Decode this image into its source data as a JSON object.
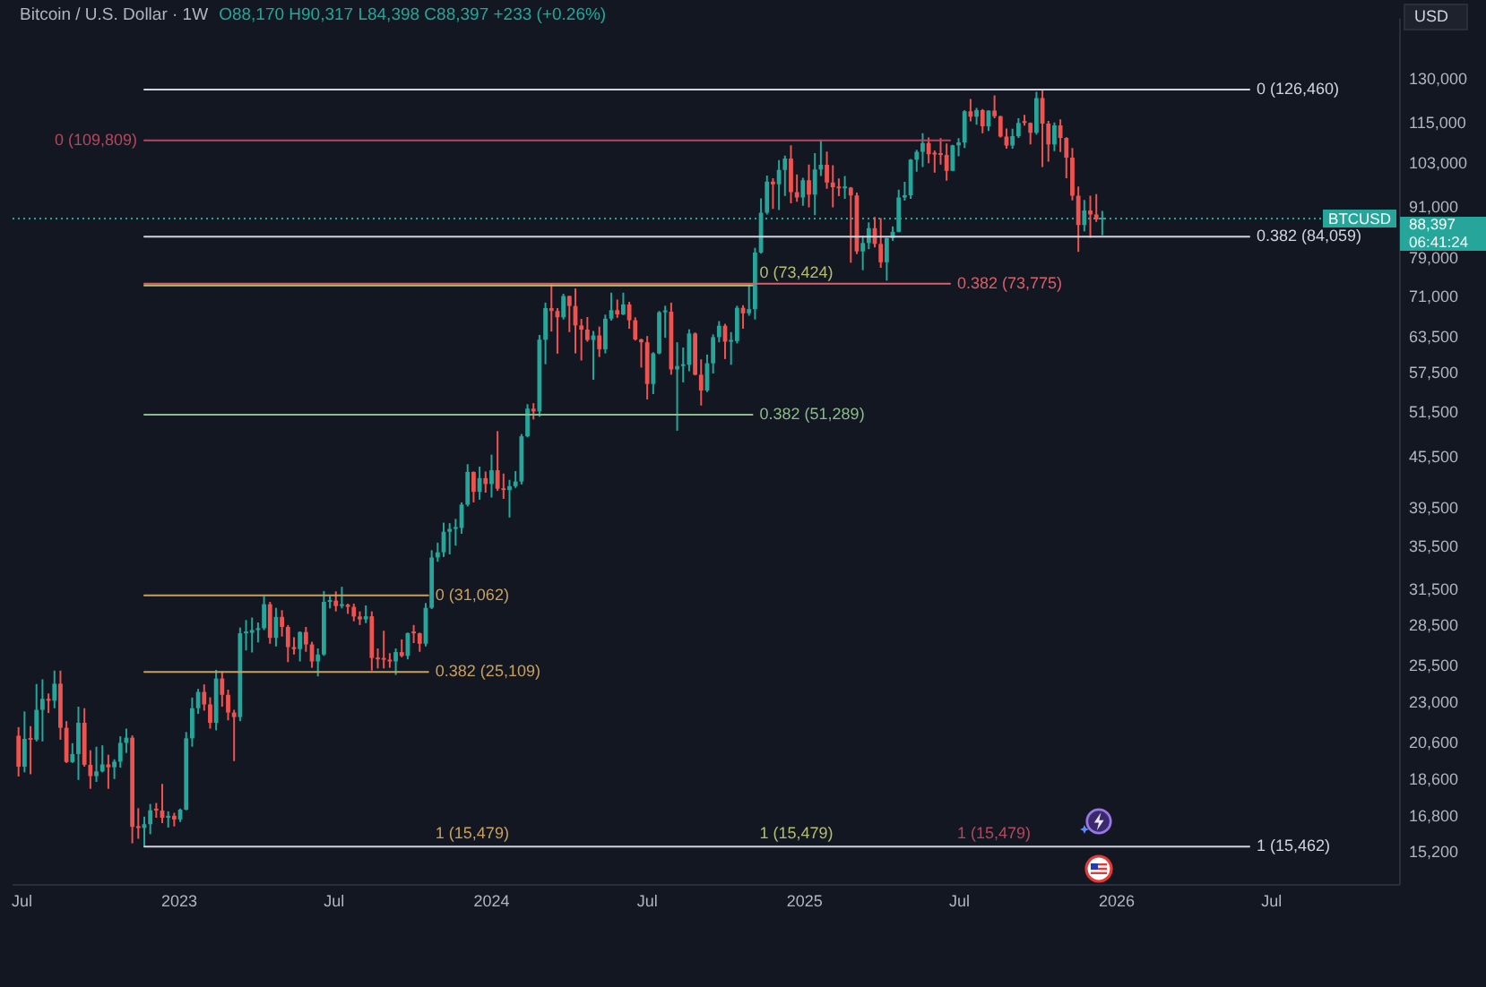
{
  "chart_data": {
    "type": "candlestick",
    "title": "Bitcoin / U.S. Dollar · 1W",
    "subtitle": "O88,170 H90,317 L84,398 C88,397 +233 (+0.26%)",
    "ylabel": "USD",
    "log": true,
    "xlim": [
      "2022-06-20",
      "2026-11-28"
    ],
    "xticks": [
      {
        "value": "2022-07-01",
        "label": "Jul"
      },
      {
        "value": "2023-01-01",
        "label": "2023"
      },
      {
        "value": "2023-07-01",
        "label": "Jul"
      },
      {
        "value": "2024-01-01",
        "label": "2024"
      },
      {
        "value": "2024-07-01",
        "label": "Jul"
      },
      {
        "value": "2025-01-01",
        "label": "2025"
      },
      {
        "value": "2025-07-01",
        "label": "Jul"
      },
      {
        "value": "2026-01-01",
        "label": "2026"
      },
      {
        "value": "2026-07-01",
        "label": "Jul"
      }
    ],
    "ylim": [
      13900,
      154000
    ],
    "yticks": [
      {
        "value": 15200,
        "label": "15,200"
      },
      {
        "value": 16800,
        "label": "16,800"
      },
      {
        "value": 18600,
        "label": "18,600"
      },
      {
        "value": 20600,
        "label": "20,600"
      },
      {
        "value": 23000,
        "label": "23,000"
      },
      {
        "value": 25500,
        "label": "25,500"
      },
      {
        "value": 28500,
        "label": "28,500"
      },
      {
        "value": 31500,
        "label": "31,500"
      },
      {
        "value": 35500,
        "label": "35,500"
      },
      {
        "value": 39500,
        "label": "39,500"
      },
      {
        "value": 45500,
        "label": "45,500"
      },
      {
        "value": 51500,
        "label": "51,500"
      },
      {
        "value": 57500,
        "label": "57,500"
      },
      {
        "value": 63500,
        "label": "63,500"
      },
      {
        "value": 71000,
        "label": "71,000"
      },
      {
        "value": 79000,
        "label": "79,000"
      },
      {
        "value": 91000,
        "label": "91,000"
      },
      {
        "value": 103000,
        "label": "103,000"
      },
      {
        "value": 115000,
        "label": "115,000"
      },
      {
        "value": 130000,
        "label": "130,000"
      }
    ],
    "ref_lines": [
      {
        "axis": "y",
        "value": 88397,
        "label": "88,397",
        "color": "#26a69a",
        "line_style": "dotted"
      }
    ],
    "annotations": [
      "BTCUSD",
      "06:41:24",
      {
        "text": "1 (15,479)",
        "x": "2025-06-20",
        "y": 15479
      },
      {
        "text": "1 (15,479)",
        "x": "2024-11-01",
        "y": 15479
      },
      {
        "text": "1 (15,479)",
        "x": "2023-10-19",
        "y": 15479
      }
    ],
    "series": [
      {
        "x": [
          "2022-06-27",
          "2022-07-04",
          "2022-07-11",
          "2022-07-18",
          "2022-07-25",
          "2022-08-01",
          "2022-08-08",
          "2022-08-15",
          "2022-08-22",
          "2022-08-29",
          "2022-09-05",
          "2022-09-12",
          "2022-09-19",
          "2022-09-26",
          "2022-10-03",
          "2022-10-10",
          "2022-10-17",
          "2022-10-24",
          "2022-10-31",
          "2022-11-07",
          "2022-11-14",
          "2022-11-21",
          "2022-11-28",
          "2022-12-05",
          "2022-12-12",
          "2022-12-19",
          "2022-12-26",
          "2023-01-02",
          "2023-01-09",
          "2023-01-16",
          "2023-01-23",
          "2023-01-30",
          "2023-02-06",
          "2023-02-13",
          "2023-02-20",
          "2023-02-27",
          "2023-03-06",
          "2023-03-13",
          "2023-03-20",
          "2023-03-27",
          "2023-04-03",
          "2023-04-10",
          "2023-04-17",
          "2023-04-24",
          "2023-05-01",
          "2023-05-08",
          "2023-05-15",
          "2023-05-22",
          "2023-05-29",
          "2023-06-05",
          "2023-06-12",
          "2023-06-19",
          "2023-06-26",
          "2023-07-03",
          "2023-07-10",
          "2023-07-17",
          "2023-07-24",
          "2023-07-31",
          "2023-08-07",
          "2023-08-14",
          "2023-08-21",
          "2023-08-28",
          "2023-09-04",
          "2023-09-11",
          "2023-09-18",
          "2023-09-25",
          "2023-10-02",
          "2023-10-09",
          "2023-10-16",
          "2023-10-23",
          "2023-10-30",
          "2023-11-06",
          "2023-11-13",
          "2023-11-20",
          "2023-11-27",
          "2023-12-04",
          "2023-12-11",
          "2023-12-18",
          "2023-12-25",
          "2024-01-01",
          "2024-01-08",
          "2024-01-15",
          "2024-01-22",
          "2024-01-29",
          "2024-02-05",
          "2024-02-12",
          "2024-02-19",
          "2024-02-26",
          "2024-03-04",
          "2024-03-11",
          "2024-03-18",
          "2024-03-25",
          "2024-04-01",
          "2024-04-08",
          "2024-04-15",
          "2024-04-22",
          "2024-04-29",
          "2024-05-06",
          "2024-05-13",
          "2024-05-20",
          "2024-05-27",
          "2024-06-03",
          "2024-06-10",
          "2024-06-17",
          "2024-06-24",
          "2024-07-01",
          "2024-07-08",
          "2024-07-15",
          "2024-07-22",
          "2024-07-29",
          "2024-08-05",
          "2024-08-12",
          "2024-08-19",
          "2024-08-26",
          "2024-09-02",
          "2024-09-09",
          "2024-09-16",
          "2024-09-23",
          "2024-09-30",
          "2024-10-07",
          "2024-10-14",
          "2024-10-21",
          "2024-10-28",
          "2024-11-04",
          "2024-11-11",
          "2024-11-18",
          "2024-11-25",
          "2024-12-02",
          "2024-12-09",
          "2024-12-16",
          "2024-12-23",
          "2024-12-30",
          "2025-01-06",
          "2025-01-13",
          "2025-01-20",
          "2025-01-27",
          "2025-02-03",
          "2025-02-10",
          "2025-02-17",
          "2025-02-24",
          "2025-03-03",
          "2025-03-10",
          "2025-03-17",
          "2025-03-24",
          "2025-03-31",
          "2025-04-07",
          "2025-04-14",
          "2025-04-21",
          "2025-04-28",
          "2025-05-05",
          "2025-05-12",
          "2025-05-19",
          "2025-05-26",
          "2025-06-02",
          "2025-06-09",
          "2025-06-16",
          "2025-06-23",
          "2025-06-30",
          "2025-07-07",
          "2025-07-14",
          "2025-07-21",
          "2025-07-28",
          "2025-08-04",
          "2025-08-11",
          "2025-08-18",
          "2025-08-25",
          "2025-09-01",
          "2025-09-08",
          "2025-09-15",
          "2025-09-22",
          "2025-09-29",
          "2025-10-06",
          "2025-10-13",
          "2025-10-20",
          "2025-10-27",
          "2025-11-03",
          "2025-11-10",
          "2025-11-17",
          "2025-11-24",
          "2025-12-01",
          "2025-12-08",
          "2025-12-15"
        ],
        "ohlc": [
          [
            21030,
            21540,
            18780,
            19300
          ],
          [
            19300,
            22500,
            19000,
            20850
          ],
          [
            20850,
            21600,
            18900,
            20800
          ],
          [
            20800,
            24280,
            20700,
            22600
          ],
          [
            22600,
            24600,
            20700,
            23300
          ],
          [
            23300,
            23650,
            22400,
            23180
          ],
          [
            23180,
            25200,
            22700,
            24300
          ],
          [
            24300,
            25200,
            20800,
            21500
          ],
          [
            21500,
            21900,
            19500,
            19550
          ],
          [
            19550,
            20600,
            19500,
            19990
          ],
          [
            19990,
            22800,
            18600,
            21800
          ],
          [
            21800,
            22700,
            19300,
            19400
          ],
          [
            19400,
            20200,
            18150,
            18800
          ],
          [
            18800,
            20400,
            18500,
            19050
          ],
          [
            19050,
            20480,
            19000,
            19420
          ],
          [
            19420,
            19950,
            18150,
            19270
          ],
          [
            19270,
            19700,
            18650,
            19570
          ],
          [
            19570,
            21000,
            19250,
            20620
          ],
          [
            20620,
            21450,
            20050,
            20920
          ],
          [
            20920,
            21050,
            15600,
            16330
          ],
          [
            16330,
            17200,
            15800,
            16280
          ],
          [
            16280,
            16800,
            15479,
            16450
          ],
          [
            16450,
            17400,
            16000,
            17100
          ],
          [
            17100,
            17450,
            16750,
            17090
          ],
          [
            17090,
            18400,
            16500,
            16750
          ],
          [
            16750,
            17050,
            16300,
            16840
          ],
          [
            16840,
            16980,
            16350,
            16670
          ],
          [
            16670,
            17180,
            16550,
            17130
          ],
          [
            17130,
            21250,
            17100,
            20880
          ],
          [
            20880,
            23380,
            20400,
            22700
          ],
          [
            22700,
            23950,
            22350,
            23750
          ],
          [
            23750,
            24250,
            22550,
            22940
          ],
          [
            22940,
            23400,
            21450,
            21800
          ],
          [
            21800,
            25250,
            21350,
            24650
          ],
          [
            24650,
            25150,
            22800,
            23560
          ],
          [
            23560,
            23900,
            21950,
            22430
          ],
          [
            22430,
            22600,
            19600,
            22150
          ],
          [
            22150,
            28400,
            21900,
            27950
          ],
          [
            27950,
            29000,
            26650,
            27990
          ],
          [
            27990,
            29200,
            26500,
            28200
          ],
          [
            28200,
            28800,
            27250,
            28350
          ],
          [
            28350,
            31000,
            28200,
            30300
          ],
          [
            30300,
            30500,
            27150,
            27600
          ],
          [
            27600,
            30000,
            26950,
            29250
          ],
          [
            29250,
            29800,
            27700,
            28450
          ],
          [
            28450,
            28600,
            25800,
            26900
          ],
          [
            26900,
            27650,
            26350,
            26750
          ],
          [
            26750,
            28100,
            25850,
            28050
          ],
          [
            28050,
            28450,
            26550,
            27100
          ],
          [
            27100,
            27300,
            25400,
            25850
          ],
          [
            25850,
            26800,
            24800,
            26350
          ],
          [
            26350,
            31430,
            26250,
            30500
          ],
          [
            30500,
            31000,
            29950,
            30600
          ],
          [
            30600,
            31400,
            29700,
            30150
          ],
          [
            30150,
            31800,
            29950,
            30250
          ],
          [
            30250,
            30350,
            29500,
            30080
          ],
          [
            30080,
            30350,
            28900,
            29280
          ],
          [
            29280,
            29700,
            28600,
            29050
          ],
          [
            29050,
            30200,
            28750,
            29300
          ],
          [
            29300,
            29700,
            25200,
            26100
          ],
          [
            26100,
            26800,
            25350,
            26000
          ],
          [
            26000,
            28150,
            25350,
            25970
          ],
          [
            25970,
            26450,
            25400,
            25850
          ],
          [
            25850,
            26800,
            24900,
            26530
          ],
          [
            26530,
            27480,
            26150,
            26250
          ],
          [
            26250,
            28000,
            26000,
            27970
          ],
          [
            27970,
            28600,
            27200,
            27950
          ],
          [
            27950,
            28000,
            26550,
            27150
          ],
          [
            27150,
            30400,
            26950,
            30000
          ],
          [
            30000,
            35200,
            29900,
            34500
          ],
          [
            34500,
            35950,
            34100,
            35000
          ],
          [
            35000,
            38000,
            34550,
            37050
          ],
          [
            37050,
            37950,
            34800,
            37350
          ],
          [
            37350,
            38400,
            35650,
            37450
          ],
          [
            37450,
            40200,
            36850,
            39950
          ],
          [
            39950,
            44700,
            39750,
            43750
          ],
          [
            43750,
            43800,
            40200,
            41400
          ],
          [
            41400,
            44400,
            40500,
            43000
          ],
          [
            43000,
            43800,
            41300,
            42300
          ],
          [
            42300,
            45900,
            40750,
            43950
          ],
          [
            43950,
            49000,
            41500,
            41750
          ],
          [
            41750,
            43550,
            40600,
            41600
          ],
          [
            41600,
            42800,
            38550,
            42050
          ],
          [
            42050,
            43850,
            41850,
            42600
          ],
          [
            42600,
            48600,
            42250,
            48300
          ],
          [
            48300,
            52800,
            48150,
            52150
          ],
          [
            52150,
            52950,
            50600,
            51750
          ],
          [
            51750,
            64000,
            51000,
            63150
          ],
          [
            63150,
            70000,
            59000,
            68950
          ],
          [
            68950,
            73800,
            64600,
            68400
          ],
          [
            68400,
            68950,
            60750,
            67200
          ],
          [
            67200,
            71750,
            66800,
            71300
          ],
          [
            71300,
            71350,
            64500,
            69350
          ],
          [
            69350,
            72800,
            60800,
            65700
          ],
          [
            65700,
            66900,
            59600,
            64950
          ],
          [
            64950,
            67250,
            62800,
            63100
          ],
          [
            63100,
            64700,
            56500,
            63900
          ],
          [
            63900,
            65500,
            60200,
            61500
          ],
          [
            61500,
            67700,
            60800,
            66950
          ],
          [
            66950,
            71950,
            66600,
            68550
          ],
          [
            68550,
            70600,
            67100,
            67750
          ],
          [
            67750,
            71950,
            67600,
            69650
          ],
          [
            69650,
            70150,
            65100,
            66650
          ],
          [
            66650,
            67200,
            63000,
            63200
          ],
          [
            63200,
            63350,
            58450,
            62700
          ],
          [
            62700,
            63800,
            53500,
            55850
          ],
          [
            55850,
            61000,
            54300,
            60800
          ],
          [
            60800,
            68400,
            60650,
            68150
          ],
          [
            68150,
            69400,
            63500,
            68250
          ],
          [
            68250,
            70000,
            57300,
            58150
          ],
          [
            58150,
            62700,
            49050,
            58700
          ],
          [
            58700,
            61800,
            56100,
            58900
          ],
          [
            58900,
            65000,
            57850,
            64250
          ],
          [
            64250,
            64450,
            57200,
            57300
          ],
          [
            57300,
            59800,
            52600,
            54850
          ],
          [
            54850,
            60600,
            54600,
            59150
          ],
          [
            59150,
            64100,
            57500,
            63600
          ],
          [
            63600,
            66500,
            62700,
            65650
          ],
          [
            65650,
            66000,
            59850,
            62800
          ],
          [
            62800,
            64500,
            58900,
            62900
          ],
          [
            62900,
            69400,
            62500,
            69000
          ],
          [
            69000,
            69500,
            65100,
            67950
          ],
          [
            67950,
            73600,
            67500,
            68750
          ],
          [
            68750,
            81500,
            66800,
            80450
          ],
          [
            80450,
            93500,
            80200,
            89850
          ],
          [
            89850,
            99600,
            89400,
            97950
          ],
          [
            97950,
            98900,
            90800,
            97250
          ],
          [
            97250,
            104000,
            90500,
            101150
          ],
          [
            101150,
            105250,
            94150,
            104450
          ],
          [
            104450,
            108350,
            92200,
            95150
          ],
          [
            95150,
            99950,
            92600,
            93750
          ],
          [
            93750,
            99000,
            91600,
            98350
          ],
          [
            98350,
            102700,
            91200,
            94500
          ],
          [
            94500,
            106000,
            89250,
            101300
          ],
          [
            101300,
            109800,
            99500,
            102600
          ],
          [
            102600,
            106450,
            96000,
            97700
          ],
          [
            97700,
            102500,
            91200,
            96450
          ],
          [
            96450,
            98800,
            94100,
            96150
          ],
          [
            96150,
            99500,
            93400,
            96300
          ],
          [
            96300,
            96500,
            78200,
            94270
          ],
          [
            94270,
            95000,
            80100,
            80700
          ],
          [
            80700,
            84300,
            76600,
            82600
          ],
          [
            82600,
            87500,
            81200,
            86050
          ],
          [
            86050,
            88800,
            81600,
            82400
          ],
          [
            82400,
            88500,
            77100,
            78300
          ],
          [
            78300,
            83800,
            74400,
            83750
          ],
          [
            83750,
            86500,
            83100,
            85200
          ],
          [
            85200,
            95800,
            85100,
            93750
          ],
          [
            93750,
            97900,
            92900,
            94300
          ],
          [
            94300,
            104300,
            93400,
            104100
          ],
          [
            104100,
            107000,
            100700,
            106400
          ],
          [
            106400,
            112000,
            102000,
            109000
          ],
          [
            109000,
            110700,
            103100,
            105700
          ],
          [
            105700,
            106800,
            100400,
            105600
          ],
          [
            105600,
            110500,
            102700,
            105500
          ],
          [
            105500,
            108900,
            98200,
            100950
          ],
          [
            100950,
            108500,
            100900,
            108350
          ],
          [
            108350,
            110500,
            105100,
            109200
          ],
          [
            109200,
            119450,
            107500,
            119050
          ],
          [
            119050,
            123200,
            115750,
            117300
          ],
          [
            117300,
            120200,
            114700,
            119450
          ],
          [
            119450,
            119800,
            112000,
            114200
          ],
          [
            114200,
            119400,
            112700,
            119300
          ],
          [
            119300,
            124450,
            116800,
            117450
          ],
          [
            117450,
            117600,
            110700,
            111000
          ],
          [
            111000,
            113500,
            107300,
            108250
          ],
          [
            108250,
            113400,
            107300,
            111150
          ],
          [
            111150,
            116800,
            110600,
            115300
          ],
          [
            115300,
            117900,
            114400,
            115250
          ],
          [
            115250,
            115400,
            108600,
            112150
          ],
          [
            112150,
            125700,
            111600,
            123500
          ],
          [
            123500,
            126460,
            102000,
            115100
          ],
          [
            115100,
            115950,
            103500,
            108600
          ],
          [
            108600,
            115400,
            106600,
            114500
          ],
          [
            114500,
            116400,
            106300,
            110600
          ],
          [
            110600,
            110800,
            98900,
            104700
          ],
          [
            104700,
            107500,
            93000,
            94200
          ],
          [
            94200,
            96600,
            80600,
            86800
          ],
          [
            86800,
            93100,
            85300,
            90400
          ],
          [
            90400,
            94200,
            83800,
            89400
          ],
          [
            89400,
            94600,
            87600,
            88164
          ],
          [
            88170,
            90317,
            84398,
            88397
          ]
        ],
        "colors": [
          "#ef5350",
          "#26a69a",
          "#ef5350",
          "#26a69a",
          "#26a69a",
          "#ef5350",
          "#26a69a",
          "#ef5350",
          "#ef5350",
          "#26a69a",
          "#26a69a",
          "#ef5350",
          "#ef5350",
          "#26a69a",
          "#26a69a",
          "#ef5350",
          "#26a69a",
          "#26a69a",
          "#26a69a",
          "#ef5350",
          "#ef5350",
          "#26a69a",
          "#26a69a",
          "#ef5350",
          "#ef5350",
          "#26a69a",
          "#ef5350",
          "#26a69a",
          "#26a69a",
          "#26a69a",
          "#26a69a",
          "#ef5350",
          "#ef5350",
          "#26a69a",
          "#ef5350",
          "#ef5350",
          "#ef5350",
          "#26a69a",
          "#26a69a",
          "#26a69a",
          "#26a69a",
          "#26a69a",
          "#ef5350",
          "#26a69a",
          "#ef5350",
          "#ef5350",
          "#ef5350",
          "#26a69a",
          "#ef5350",
          "#ef5350",
          "#26a69a",
          "#26a69a",
          "#26a69a",
          "#ef5350",
          "#26a69a",
          "#ef5350",
          "#ef5350",
          "#ef5350",
          "#26a69a",
          "#ef5350",
          "#ef5350",
          "#ef5350",
          "#ef5350",
          "#26a69a",
          "#ef5350",
          "#26a69a",
          "#ef5350",
          "#ef5350",
          "#26a69a",
          "#26a69a",
          "#26a69a",
          "#26a69a",
          "#26a69a",
          "#26a69a",
          "#26a69a",
          "#26a69a",
          "#ef5350",
          "#26a69a",
          "#ef5350",
          "#26a69a",
          "#ef5350",
          "#ef5350",
          "#26a69a",
          "#26a69a",
          "#26a69a",
          "#26a69a",
          "#ef5350",
          "#26a69a",
          "#26a69a",
          "#ef5350",
          "#ef5350",
          "#26a69a",
          "#ef5350",
          "#ef5350",
          "#ef5350",
          "#ef5350",
          "#26a69a",
          "#ef5350",
          "#26a69a",
          "#26a69a",
          "#ef5350",
          "#26a69a",
          "#ef5350",
          "#ef5350",
          "#ef5350",
          "#ef5350",
          "#26a69a",
          "#26a69a",
          "#26a69a",
          "#ef5350",
          "#26a69a",
          "#26a69a",
          "#26a69a",
          "#ef5350",
          "#ef5350",
          "#26a69a",
          "#26a69a",
          "#26a69a",
          "#ef5350",
          "#26a69a",
          "#26a69a",
          "#ef5350",
          "#26a69a",
          "#26a69a",
          "#26a69a",
          "#26a69a",
          "#ef5350",
          "#26a69a",
          "#26a69a",
          "#ef5350",
          "#ef5350",
          "#26a69a",
          "#ef5350",
          "#26a69a",
          "#26a69a",
          "#ef5350",
          "#ef5350",
          "#ef5350",
          "#26a69a",
          "#ef5350",
          "#ef5350",
          "#26a69a",
          "#26a69a",
          "#ef5350",
          "#ef5350",
          "#26a69a",
          "#26a69a",
          "#26a69a",
          "#26a69a",
          "#26a69a",
          "#26a69a",
          "#26a69a",
          "#ef5350",
          "#ef5350",
          "#ef5350",
          "#ef5350",
          "#26a69a",
          "#26a69a",
          "#26a69a",
          "#ef5350",
          "#26a69a",
          "#ef5350",
          "#26a69a",
          "#ef5350",
          "#ef5350",
          "#ef5350",
          "#26a69a",
          "#26a69a",
          "#ef5350",
          "#ef5350",
          "#26a69a",
          "#ef5350",
          "#ef5350",
          "#26a69a",
          "#ef5350",
          "#ef5350",
          "#ef5350",
          "#ef5350",
          "#26a69a",
          "#ef5350",
          "#ef5350",
          "#26a69a"
        ]
      },
      {
        "type": "line",
        "name": "0 (126,460)",
        "color": "#d1d4dc",
        "x": [
          "2022-11-21",
          "2026-06-05"
        ],
        "values": [
          126460,
          126460
        ]
      },
      {
        "type": "line",
        "name": "0.382 (84,059)",
        "color": "#d1d4dc",
        "x": [
          "2022-11-21",
          "2026-06-05"
        ],
        "values": [
          84059,
          84059
        ]
      },
      {
        "type": "line",
        "name": "1 (15,462)",
        "color": "#d1d4dc",
        "x": [
          "2022-11-21",
          "2026-06-05"
        ],
        "values": [
          15462,
          15462
        ]
      },
      {
        "type": "line",
        "name": "0 (109,809)",
        "color": "#b5485f",
        "x": [
          "2022-11-21",
          "2025-06-20"
        ],
        "values": [
          109809,
          109809
        ]
      },
      {
        "type": "line",
        "name": "0.382 (73,775)",
        "color": "#d6616a",
        "x": [
          "2022-11-21",
          "2025-06-20"
        ],
        "values": [
          73775,
          73775
        ]
      },
      {
        "type": "line",
        "name": "0 (73,424)",
        "color": "#b4be73",
        "x": [
          "2022-11-21",
          "2024-11-01"
        ],
        "values": [
          73424,
          73424
        ]
      },
      {
        "type": "line",
        "name": "0.382 (51,289)",
        "color": "#8cbb8c",
        "x": [
          "2022-11-21",
          "2024-11-01"
        ],
        "values": [
          51289,
          51289
        ]
      },
      {
        "type": "line",
        "name": "0 (31,062)",
        "color": "#c9a05e",
        "x": [
          "2022-11-21",
          "2023-10-19"
        ],
        "values": [
          31062,
          31062
        ]
      },
      {
        "type": "line",
        "name": "0.382 (25,109)",
        "color": "#c9a05e",
        "x": [
          "2022-11-21",
          "2023-10-19"
        ],
        "values": [
          25109,
          25109
        ]
      }
    ]
  }
}
